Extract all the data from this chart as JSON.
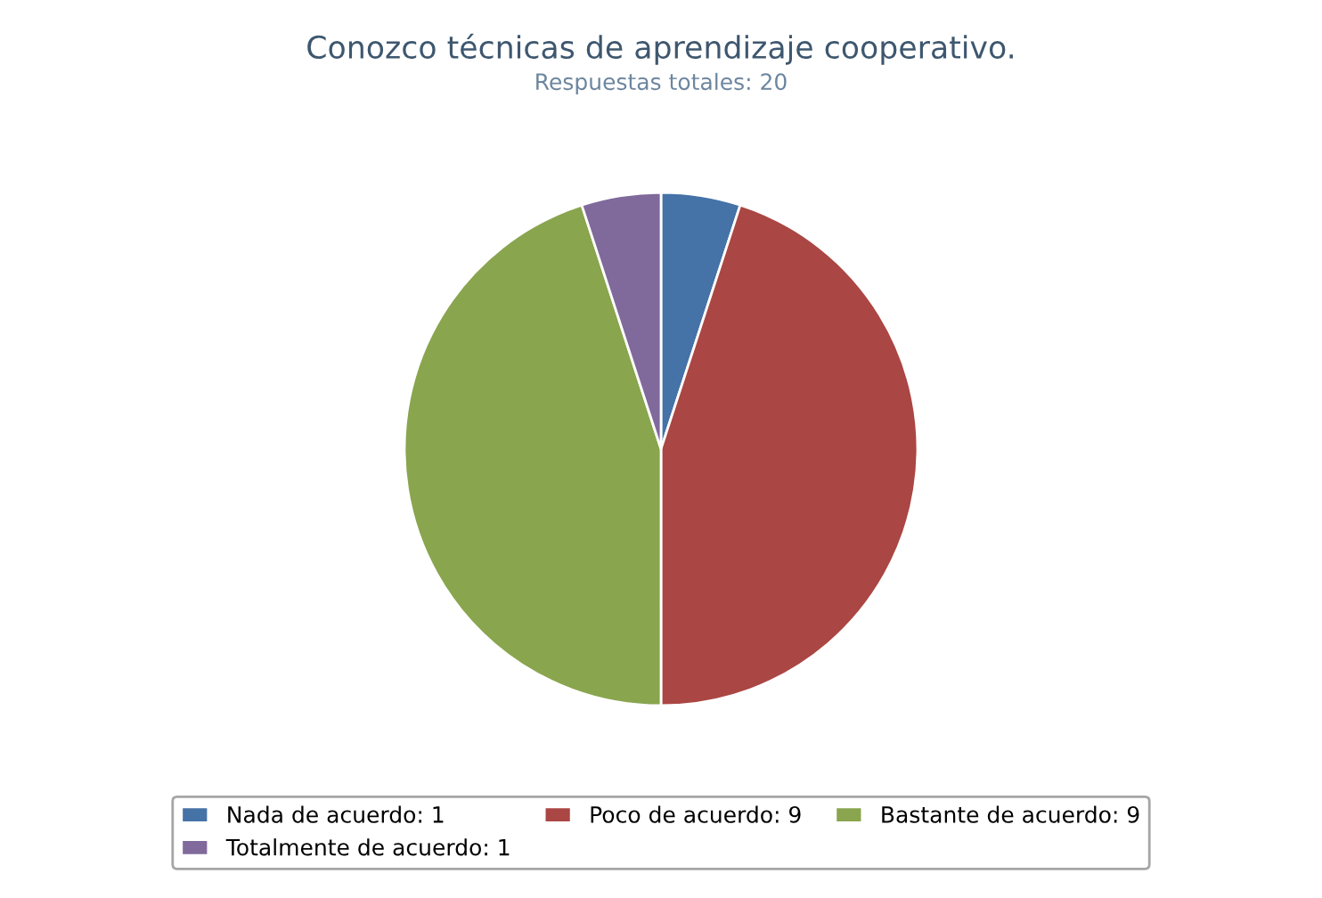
{
  "chart_data": {
    "type": "pie",
    "title": "Conozco técnicas de aprendizaje cooperativo.",
    "subtitle": "Respuestas totales: 20",
    "categories": [
      "Nada de acuerdo: 1",
      "Poco de acuerdo: 9",
      "Bastante de acuerdo: 9",
      "Totalmente de acuerdo: 1"
    ],
    "values": [
      1,
      9,
      9,
      1
    ],
    "colors": [
      "#4572a7",
      "#aa4643",
      "#89a54e",
      "#80699b"
    ],
    "legend": "bottom"
  }
}
